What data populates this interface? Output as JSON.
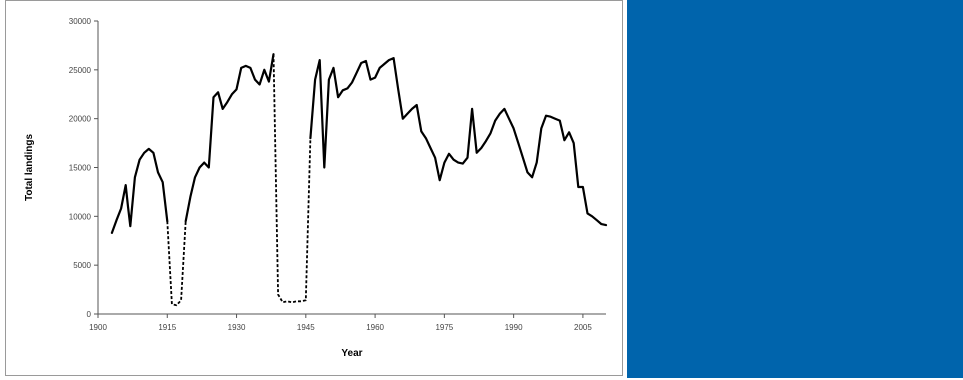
{
  "panel": {
    "color": "#0064ac"
  },
  "chart_data": {
    "type": "line",
    "xlabel": "Year",
    "ylabel": "Total landings",
    "xlim": [
      1900,
      2010
    ],
    "ylim": [
      0,
      30000
    ],
    "x_ticks": [
      "1900",
      "1915",
      "1930",
      "1945",
      "1960",
      "1975",
      "1990",
      "2005"
    ],
    "y_ticks": [
      "0",
      "5000",
      "10000",
      "15000",
      "20000",
      "25000",
      "30000"
    ],
    "grid": false,
    "line_color": "#000000",
    "segments": [
      {
        "style": "solid",
        "points": [
          [
            1903,
            8300
          ],
          [
            1904,
            9600
          ],
          [
            1905,
            10800
          ],
          [
            1906,
            13200
          ],
          [
            1906.5,
            11000
          ],
          [
            1907,
            9000
          ],
          [
            1908,
            14000
          ],
          [
            1909,
            15800
          ],
          [
            1910,
            16500
          ],
          [
            1911,
            16900
          ],
          [
            1912,
            16500
          ],
          [
            1913,
            14500
          ],
          [
            1914,
            13500
          ],
          [
            1915,
            9500
          ]
        ]
      },
      {
        "style": "dashed",
        "points": [
          [
            1915,
            9500
          ],
          [
            1916,
            1000
          ],
          [
            1917,
            900
          ],
          [
            1918,
            1400
          ],
          [
            1919,
            9500
          ]
        ]
      },
      {
        "style": "solid",
        "points": [
          [
            1919,
            9500
          ],
          [
            1920,
            12000
          ],
          [
            1921,
            14000
          ],
          [
            1922,
            15000
          ],
          [
            1923,
            15500
          ],
          [
            1924,
            15000
          ],
          [
            1925,
            22200
          ],
          [
            1926,
            22700
          ],
          [
            1927,
            21000
          ],
          [
            1928,
            21700
          ],
          [
            1929,
            22500
          ],
          [
            1930,
            23000
          ],
          [
            1931,
            25200
          ],
          [
            1932,
            25400
          ],
          [
            1933,
            25200
          ],
          [
            1934,
            24000
          ],
          [
            1935,
            23500
          ],
          [
            1936,
            25000
          ],
          [
            1937,
            23800
          ],
          [
            1938,
            26600
          ]
        ]
      },
      {
        "style": "dashed",
        "points": [
          [
            1938,
            26600
          ],
          [
            1939,
            2000
          ],
          [
            1940,
            1200
          ],
          [
            1941,
            1300
          ],
          [
            1942,
            1200
          ],
          [
            1943,
            1300
          ],
          [
            1944,
            1300
          ],
          [
            1945,
            1400
          ],
          [
            1946,
            18000
          ]
        ]
      },
      {
        "style": "solid",
        "points": [
          [
            1946,
            18000
          ],
          [
            1947,
            24000
          ],
          [
            1948,
            26000
          ],
          [
            1949,
            15000
          ],
          [
            1950,
            24000
          ],
          [
            1951,
            25200
          ],
          [
            1952,
            22200
          ],
          [
            1953,
            22900
          ],
          [
            1954,
            23100
          ],
          [
            1955,
            23700
          ],
          [
            1956,
            24700
          ],
          [
            1957,
            25700
          ],
          [
            1958,
            25900
          ],
          [
            1959,
            24000
          ],
          [
            1960,
            24200
          ],
          [
            1961,
            25200
          ],
          [
            1962,
            25600
          ],
          [
            1963,
            26000
          ],
          [
            1964,
            26200
          ],
          [
            1965,
            23000
          ],
          [
            1966,
            20000
          ],
          [
            1967,
            20500
          ],
          [
            1968,
            21000
          ],
          [
            1969,
            21400
          ],
          [
            1970,
            18700
          ],
          [
            1971,
            18000
          ],
          [
            1972,
            17000
          ],
          [
            1973,
            16000
          ],
          [
            1974,
            13700
          ],
          [
            1975,
            15500
          ],
          [
            1976,
            16400
          ],
          [
            1977,
            15800
          ],
          [
            1978,
            15500
          ],
          [
            1979,
            15400
          ],
          [
            1980,
            16000
          ],
          [
            1981,
            21000
          ],
          [
            1982,
            16500
          ],
          [
            1983,
            17000
          ],
          [
            1984,
            17700
          ],
          [
            1985,
            18500
          ],
          [
            1986,
            19800
          ],
          [
            1987,
            20500
          ],
          [
            1988,
            21000
          ],
          [
            1989,
            20000
          ],
          [
            1990,
            19000
          ],
          [
            1991,
            17500
          ],
          [
            1992,
            16000
          ],
          [
            1993,
            14500
          ],
          [
            1994,
            14000
          ],
          [
            1995,
            15500
          ],
          [
            1996,
            19000
          ],
          [
            1997,
            20300
          ],
          [
            1998,
            20200
          ],
          [
            1999,
            20000
          ],
          [
            2000,
            19800
          ],
          [
            2001,
            17800
          ],
          [
            2002,
            18600
          ],
          [
            2003,
            17500
          ],
          [
            2004,
            13000
          ],
          [
            2005,
            13000
          ],
          [
            2006,
            10300
          ],
          [
            2007,
            10000
          ],
          [
            2008,
            9600
          ],
          [
            2009,
            9200
          ],
          [
            2010,
            9100
          ]
        ]
      }
    ]
  }
}
